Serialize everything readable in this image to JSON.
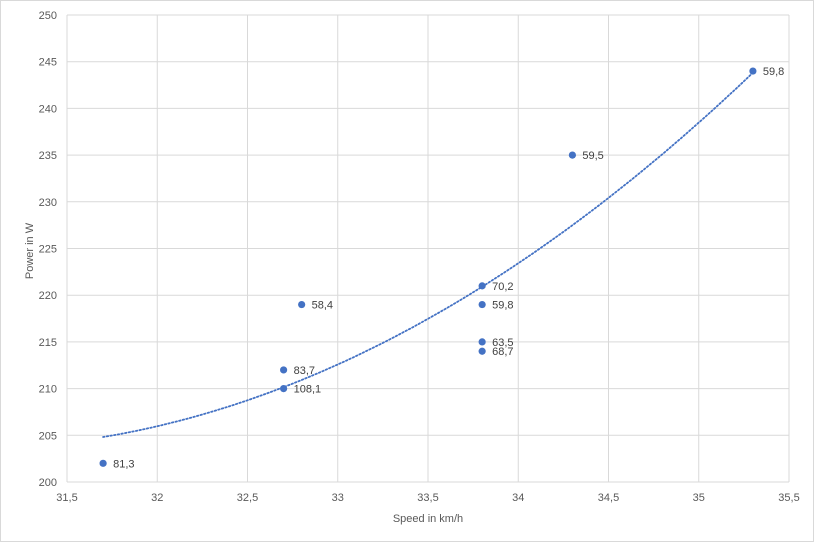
{
  "chart_data": {
    "type": "scatter",
    "title": "",
    "xlabel": "Speed  in km/h",
    "ylabel": "Power  in W",
    "xlim": [
      31.5,
      35.5
    ],
    "ylim": [
      200,
      250
    ],
    "x_ticks": [
      31.5,
      32,
      32.5,
      33,
      33.5,
      34,
      34.5,
      35,
      35.5
    ],
    "y_ticks": [
      200,
      205,
      210,
      215,
      220,
      225,
      230,
      235,
      240,
      245,
      250
    ],
    "x_tick_labels": [
      "31,5",
      "32",
      "32,5",
      "33",
      "33,5",
      "34",
      "34,5",
      "35",
      "35,5"
    ],
    "y_tick_labels": [
      "200",
      "205",
      "210",
      "215",
      "220",
      "225",
      "230",
      "235",
      "240",
      "245",
      "250"
    ],
    "grid": true,
    "legend": "none",
    "point_color": "#4472C4",
    "trendline": {
      "type": "polynomial-2",
      "style": "dotted",
      "color": "#4472C4",
      "x_range": [
        31.7,
        35.3
      ]
    },
    "points": [
      {
        "x": 31.7,
        "y": 202,
        "label": "81,3"
      },
      {
        "x": 32.7,
        "y": 210,
        "label": "108,1"
      },
      {
        "x": 32.7,
        "y": 212,
        "label": "83,7"
      },
      {
        "x": 32.8,
        "y": 219,
        "label": "58,4"
      },
      {
        "x": 33.8,
        "y": 214,
        "label": "68,7"
      },
      {
        "x": 33.8,
        "y": 215,
        "label": "63,5"
      },
      {
        "x": 33.8,
        "y": 219,
        "label": "59,8"
      },
      {
        "x": 33.8,
        "y": 221,
        "label": "70,2"
      },
      {
        "x": 34.3,
        "y": 235,
        "label": "59,5"
      },
      {
        "x": 35.3,
        "y": 244,
        "label": "59,8"
      }
    ]
  }
}
